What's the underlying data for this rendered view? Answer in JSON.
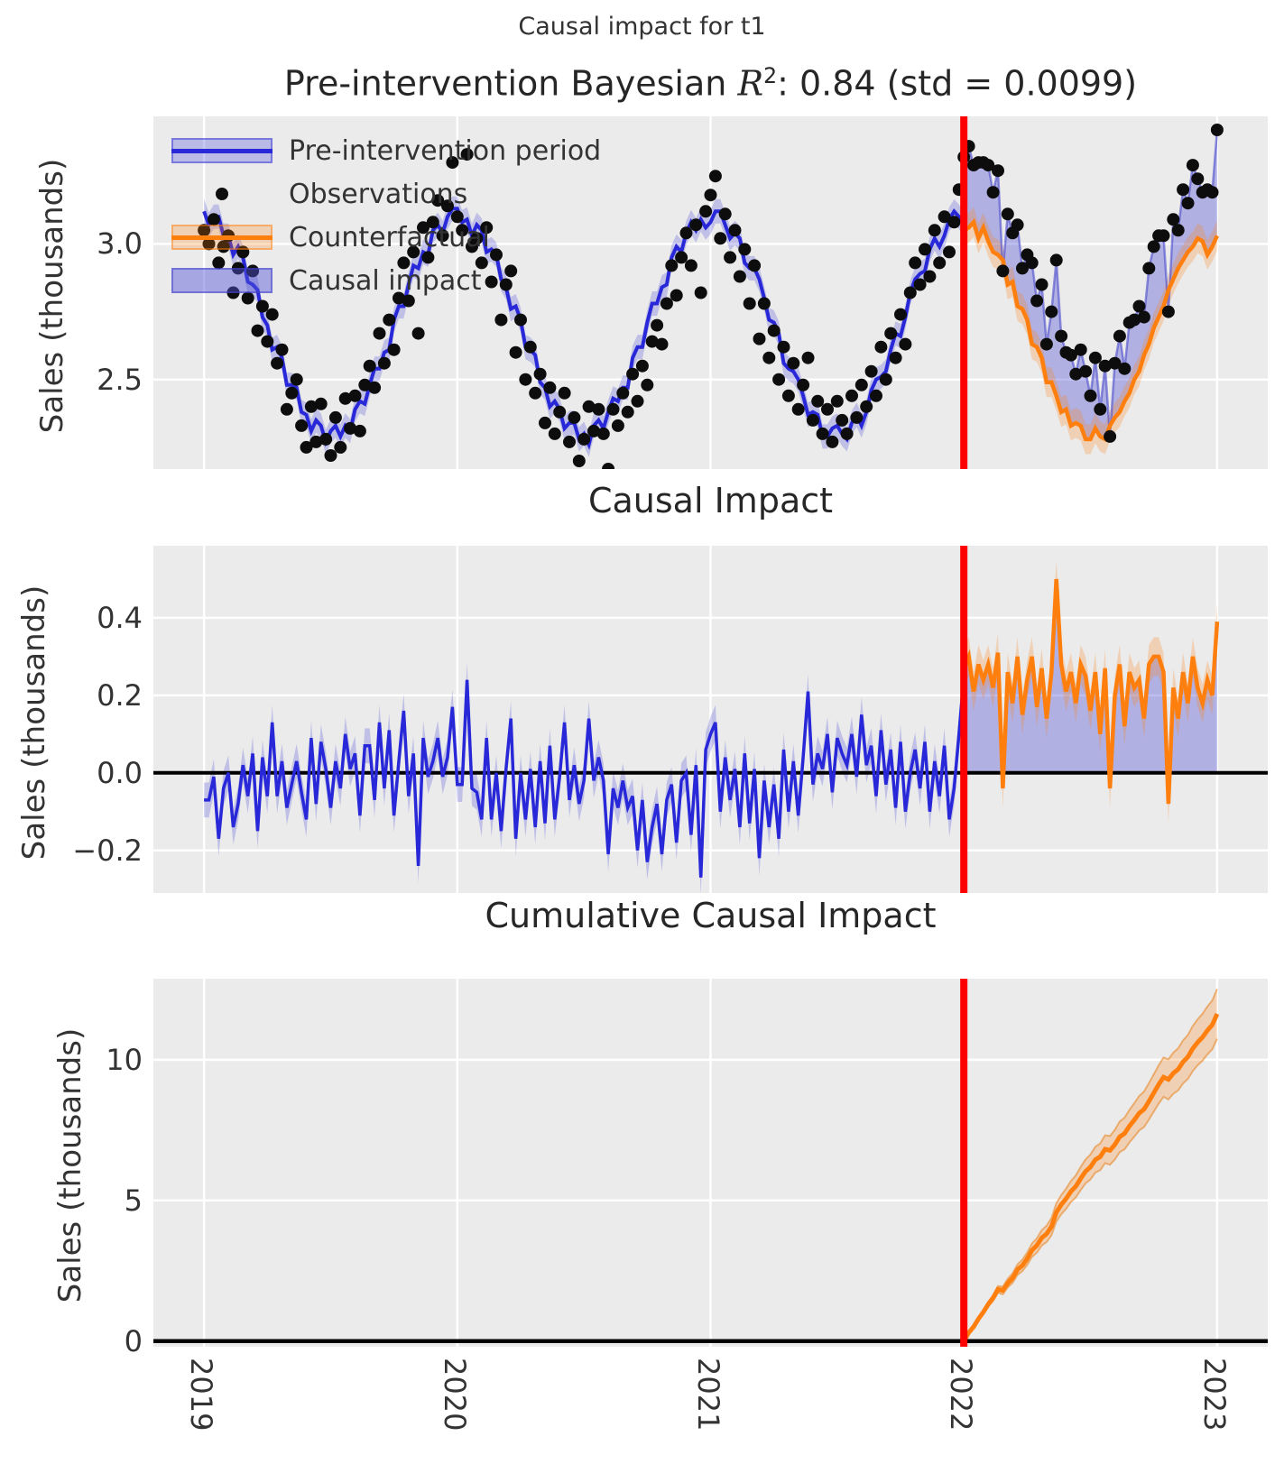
{
  "chart_data": {
    "type": "line",
    "suptitle": "Causal impact for t1",
    "x": {
      "tick_labels": [
        "2019",
        "2020",
        "2021",
        "2022",
        "2023"
      ],
      "tick_values": [
        2019,
        2020,
        2021,
        2022,
        2023
      ],
      "lim": [
        2018.8,
        2023.2
      ],
      "start_year": 2019,
      "weeks_per_year": 52
    },
    "intervention_x": 2022,
    "panels": [
      {
        "title_prefix": "Pre-intervention Bayesian ",
        "title_math": "R",
        "title_sup": "2",
        "title_suffix": ": 0.84 (std = 0.0099)",
        "ylabel": "Sales (thousands)",
        "ytick_labels": [
          "3.0",
          "2.5"
        ],
        "ytick_values": [
          3.0,
          2.5
        ],
        "ylim": [
          2.17,
          3.47
        ],
        "legend": [
          "Pre-intervention period",
          "Observations",
          "Counterfactual",
          "Causal impact"
        ]
      },
      {
        "title": "Causal Impact",
        "ylabel": "Sales (thousands)",
        "ytick_labels": [
          "0.4",
          "0.2",
          "0.0",
          "−0.2"
        ],
        "ytick_values": [
          0.4,
          0.2,
          0.0,
          -0.2
        ],
        "ylim": [
          -0.31,
          0.586
        ]
      },
      {
        "title": "Cumulative Causal Impact",
        "ylabel": "Sales (thousands)",
        "ytick_labels": [
          "10",
          "5",
          "0"
        ],
        "ytick_values": [
          10,
          5,
          0
        ],
        "ylim": [
          -0.2,
          12.88
        ]
      }
    ],
    "series": {
      "observations": [
        3.05,
        3.0,
        3.09,
        2.93,
        2.99,
        3.03,
        2.82,
        2.91,
        2.97,
        2.8,
        2.9,
        2.68,
        2.77,
        2.64,
        2.74,
        2.56,
        2.61,
        2.39,
        2.45,
        2.5,
        2.33,
        2.25,
        2.4,
        2.27,
        2.41,
        2.28,
        2.22,
        2.36,
        2.25,
        2.43,
        2.32,
        2.44,
        2.31,
        2.48,
        2.55,
        2.47,
        2.67,
        2.56,
        2.72,
        2.61,
        2.8,
        2.93,
        2.79,
        2.97,
        2.67,
        3.06,
        2.95,
        3.08,
        3.16,
        3.03,
        3.14,
        3.3,
        3.1,
        3.05,
        3.33,
        2.99,
        3.02,
        2.93,
        3.06,
        2.86,
        2.96,
        2.72,
        2.85,
        2.9,
        2.6,
        2.72,
        2.5,
        2.62,
        2.45,
        2.52,
        2.34,
        2.47,
        2.3,
        2.38,
        2.45,
        2.27,
        2.36,
        2.2,
        2.28,
        2.4,
        2.31,
        2.39,
        2.3,
        2.17,
        2.39,
        2.33,
        2.45,
        2.38,
        2.52,
        2.42,
        2.55,
        2.48,
        2.64,
        2.7,
        2.63,
        2.78,
        2.92,
        2.81,
        2.95,
        3.04,
        2.92,
        3.07,
        2.82,
        3.12,
        3.18,
        3.25,
        3.02,
        3.11,
        2.95,
        3.05,
        2.88,
        2.98,
        2.78,
        2.92,
        2.65,
        2.78,
        2.58,
        2.68,
        2.5,
        2.62,
        2.44,
        2.56,
        2.39,
        2.48,
        2.58,
        2.35,
        2.42,
        2.3,
        2.39,
        2.27,
        2.42,
        2.35,
        2.3,
        2.44,
        2.36,
        2.48,
        2.4,
        2.53,
        2.44,
        2.62,
        2.5,
        2.67,
        2.58,
        2.74,
        2.63,
        2.82,
        2.93,
        2.85,
        2.98,
        2.88,
        3.05,
        2.93,
        3.1,
        2.97,
        3.08,
        3.2,
        3.32,
        3.36,
        3.29,
        3.3,
        3.3,
        3.29,
        3.19,
        3.27,
        2.9,
        3.11,
        3.04,
        3.07,
        2.91,
        2.96,
        2.93,
        2.79,
        2.85,
        2.63,
        2.75,
        2.94,
        2.66,
        2.6,
        2.59,
        2.52,
        2.61,
        2.53,
        2.44,
        2.58,
        2.39,
        2.55,
        2.29,
        2.56,
        2.66,
        2.54,
        2.71,
        2.72,
        2.77,
        2.73,
        2.91,
        2.99,
        3.03,
        3.03,
        2.75,
        3.09,
        3.05,
        3.2,
        3.15,
        3.29,
        3.24,
        3.19,
        3.2,
        3.19,
        3.42
      ],
      "model_mean_pre": [
        3.12,
        3.07,
        3.1,
        3.1,
        3.03,
        3.03,
        2.96,
        2.99,
        2.95,
        2.86,
        2.85,
        2.83,
        2.73,
        2.7,
        2.61,
        2.62,
        2.58,
        2.48,
        2.48,
        2.47,
        2.38,
        2.37,
        2.31,
        2.35,
        2.33,
        2.27,
        2.31,
        2.33,
        2.29,
        2.33,
        2.31,
        2.39,
        2.42,
        2.41,
        2.48,
        2.54,
        2.54,
        2.6,
        2.61,
        2.72,
        2.77,
        2.77,
        2.85,
        2.92,
        2.91,
        2.97,
        2.96,
        3.05,
        3.07,
        3.04,
        3.1,
        3.13,
        3.13,
        3.08,
        3.09,
        3.03,
        3.07,
        3.05,
        2.97,
        2.98,
        2.96,
        2.87,
        2.84,
        2.76,
        2.77,
        2.72,
        2.62,
        2.61,
        2.59,
        2.49,
        2.47,
        2.4,
        2.42,
        2.39,
        2.32,
        2.34,
        2.34,
        2.28,
        2.3,
        2.26,
        2.33,
        2.35,
        2.32,
        2.38,
        2.43,
        2.42,
        2.47,
        2.47,
        2.58,
        2.62,
        2.62,
        2.71,
        2.78,
        2.78,
        2.84,
        2.85,
        2.95,
        2.99,
        2.97,
        3.04,
        3.08,
        3.05,
        3.09,
        3.06,
        3.08,
        3.12,
        3.12,
        3.07,
        3.02,
        3.04,
        3.02,
        2.93,
        2.91,
        2.91,
        2.87,
        2.8,
        2.72,
        2.71,
        2.67,
        2.56,
        2.54,
        2.53,
        2.5,
        2.44,
        2.37,
        2.38,
        2.37,
        2.29,
        2.29,
        2.32,
        2.33,
        2.3,
        2.28,
        2.34,
        2.37,
        2.33,
        2.38,
        2.46,
        2.5,
        2.51,
        2.53,
        2.61,
        2.67,
        2.66,
        2.73,
        2.82,
        2.87,
        2.89,
        2.9,
        2.98,
        3.02,
        2.99,
        3.03,
        3.09,
        3.12,
        3.1,
        3.07
      ],
      "counterfactual_post": [
        3.05,
        3.06,
        3.08,
        3.02,
        3.06,
        3.01,
        2.97,
        2.96,
        2.94,
        2.85,
        2.86,
        2.77,
        2.76,
        2.72,
        2.63,
        2.62,
        2.58,
        2.49,
        2.49,
        2.44,
        2.38,
        2.39,
        2.33,
        2.34,
        2.33,
        2.28,
        2.28,
        2.32,
        2.29,
        2.28,
        2.33,
        2.36,
        2.38,
        2.42,
        2.45,
        2.5,
        2.53,
        2.59,
        2.63,
        2.69,
        2.73,
        2.77,
        2.83,
        2.87,
        2.91,
        2.94,
        2.97,
        2.99,
        3.02,
        3.01,
        2.96,
        2.99,
        3.03
      ],
      "band_halfwidth_pre": 0.045,
      "band_halfwidth_post": 0.055,
      "cum_band_growth_per_week": 0.017
    },
    "colors": {
      "blue": "#2828d8",
      "blue_band": "rgba(40,40,216,0.22)",
      "lavender_fill": "rgba(82,82,214,0.38)",
      "lavender_edge": "rgba(75,75,205,0.6)",
      "orange": "#ff7f0e",
      "orange_band": "rgba(255,127,14,0.25)",
      "orange_band_edge": "rgba(232,130,28,0.55)",
      "red": "#ff0000",
      "observation": "#0d0d0d",
      "zero_line": "#000000",
      "axes_bg": "#ebebeb",
      "grid": "#ffffff"
    }
  }
}
